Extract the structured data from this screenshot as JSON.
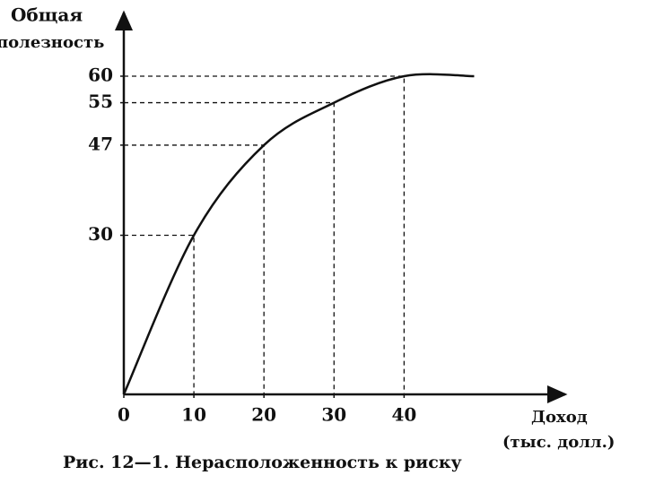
{
  "chart_data": {
    "type": "line",
    "y_label_lines": [
      "Общая",
      "полезность"
    ],
    "x_label_lines": [
      "Доход",
      "(тыс. долл.)"
    ],
    "caption": "Рис. 12—1. Нерасположенность к риску",
    "x": [
      0,
      10,
      20,
      30,
      40,
      50
    ],
    "series": [
      {
        "color": "#111111",
        "values": [
          0,
          30,
          47,
          55,
          60,
          60
        ]
      }
    ],
    "xlim": [
      0,
      63
    ],
    "ylim": [
      0,
      72
    ],
    "xticks": [
      0,
      10,
      20,
      30,
      40
    ],
    "yticks": [
      30,
      47,
      55,
      60
    ],
    "guides": true
  }
}
